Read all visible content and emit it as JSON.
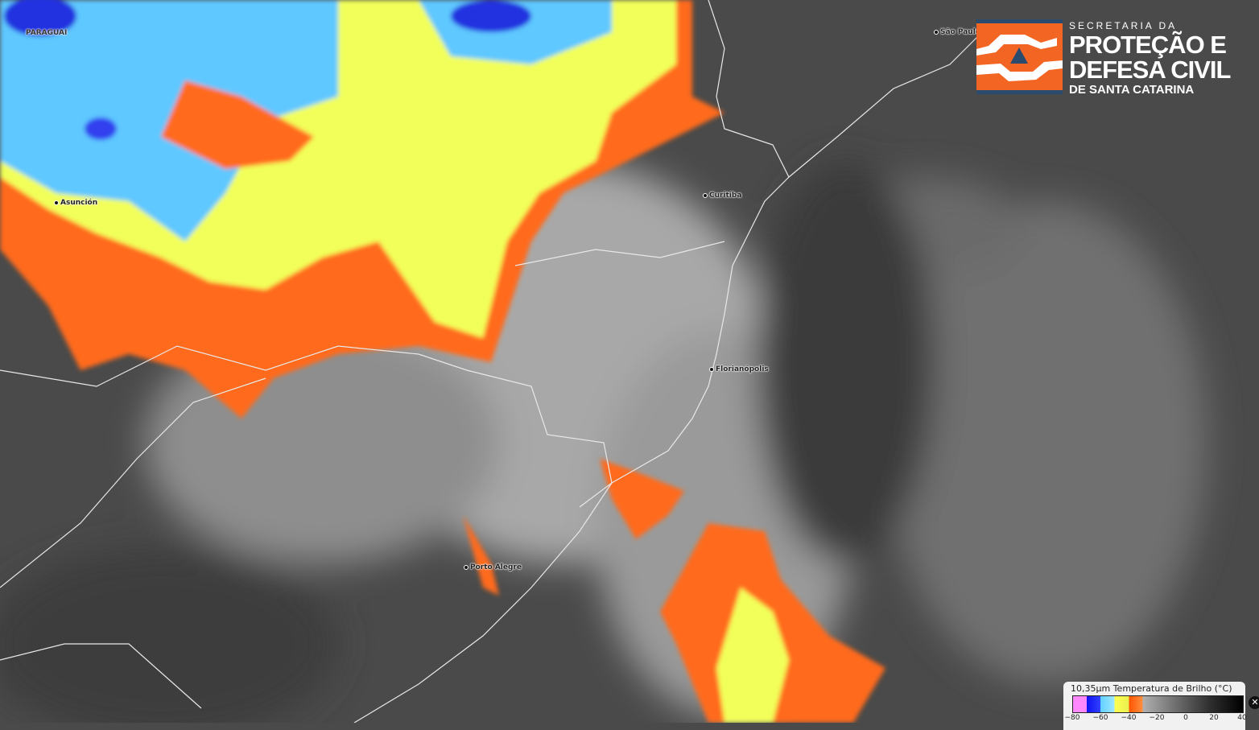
{
  "map": {
    "type": "satellite infrared imagery",
    "colors": {
      "background": "#4a4a4a",
      "cloud_gray": "#b8b8b8",
      "orange": "#ff6a1a",
      "yellow": "#f2ff5a",
      "cyan": "#5fc8ff",
      "blue": "#2030e0",
      "border": "#e0e0e0"
    },
    "cities": [
      {
        "name": "Asunción"
      },
      {
        "name": "Curitiba"
      },
      {
        "name": "Florianópolis"
      },
      {
        "name": "Porto Alegre"
      },
      {
        "name": "São Paulo"
      }
    ],
    "countries": [
      "PARAGUAI"
    ]
  },
  "logo": {
    "line1": "SECRETARIA DA",
    "line2": "PROTEÇÃO E",
    "line3": "DEFESA CIVIL",
    "line4": "DE SANTA CATARINA",
    "colors": {
      "orange": "#f26522",
      "navy": "#2a4a6e"
    }
  },
  "legend": {
    "title": "10,35μm Temperatura de Brilho (°C)",
    "ticks": [
      "−80",
      "−60",
      "−40",
      "−20",
      "0",
      "20",
      "40"
    ],
    "close_icon": "close-icon"
  }
}
